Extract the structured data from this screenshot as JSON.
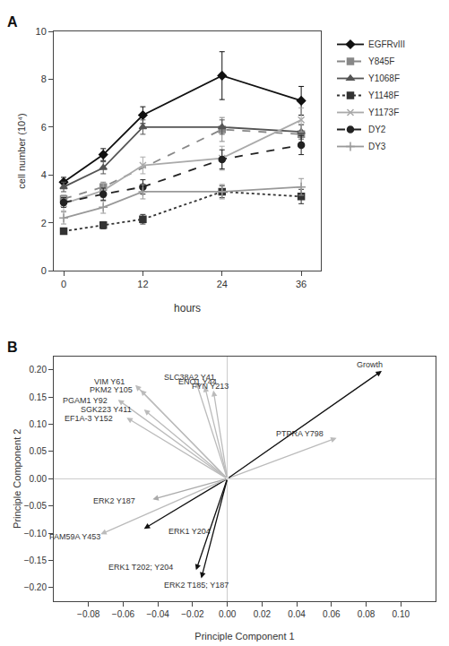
{
  "chart_data": [
    {
      "type": "line",
      "title": "A",
      "x": [
        0,
        6,
        12,
        24,
        36
      ],
      "xlabel": "hours",
      "ylabel": "cell number (10⁴)",
      "xlim": [
        -1.5,
        39
      ],
      "xticks": [
        0,
        12,
        24,
        36
      ],
      "ylim": [
        0,
        10
      ],
      "yticks": [
        0,
        2,
        4,
        6,
        8,
        10
      ],
      "grid": false,
      "legend": "right",
      "series": [
        {
          "name": "EGFRvIII",
          "color": "#111111",
          "line_style": "solid",
          "marker": "diamond",
          "values": [
            3.7,
            4.85,
            6.5,
            8.15,
            7.1
          ],
          "error": [
            0.2,
            0.25,
            0.35,
            1.0,
            0.6
          ]
        },
        {
          "name": "Y845F",
          "color": "#888888",
          "line_style": "dashed",
          "marker": "square",
          "values": [
            3.0,
            3.5,
            null,
            5.9,
            5.7
          ],
          "error": [
            0.15,
            0.2,
            null,
            0.5,
            0.4
          ]
        },
        {
          "name": "Y1068F",
          "color": "#555555",
          "line_style": "solid",
          "marker": "triangle-up",
          "values": [
            3.5,
            4.3,
            6.0,
            6.0,
            5.8
          ],
          "error": [
            0.2,
            0.25,
            0.3,
            0.3,
            0.3
          ]
        },
        {
          "name": "Y1148F",
          "color": "#333333",
          "line_style": "dotted",
          "marker": "square",
          "values": [
            1.65,
            1.9,
            2.15,
            3.3,
            3.1
          ],
          "error": [
            0.1,
            0.15,
            0.2,
            0.25,
            0.3
          ]
        },
        {
          "name": "Y1173F",
          "color": "#aaaaaa",
          "line_style": "solid",
          "marker": "x",
          "values": [
            2.8,
            3.35,
            4.4,
            4.7,
            6.3
          ],
          "error": [
            0.3,
            0.3,
            0.35,
            0.5,
            0.5
          ]
        },
        {
          "name": "DY2",
          "color": "#222222",
          "line_style": "dashed",
          "marker": "circle",
          "values": [
            2.85,
            3.2,
            3.5,
            4.65,
            5.25
          ],
          "error": [
            0.2,
            0.25,
            0.3,
            0.4,
            0.4
          ]
        },
        {
          "name": "DY3",
          "color": "#999999",
          "line_style": "solid",
          "marker": "plus",
          "values": [
            2.2,
            2.65,
            3.3,
            3.3,
            3.5
          ],
          "error": [
            0.25,
            0.25,
            0.3,
            0.3,
            0.35
          ]
        }
      ]
    },
    {
      "type": "biplot",
      "title": "B",
      "xlabel": "Principle Component 1",
      "ylabel": "Principle Component 2",
      "xlim": [
        -0.1,
        0.12
      ],
      "ylim": [
        -0.225,
        0.225
      ],
      "grid": false,
      "xticks": [
        {
          "value": -0.08,
          "label": "−0.08"
        },
        {
          "value": -0.06,
          "label": "−0.06"
        },
        {
          "value": -0.04,
          "label": "−0.04"
        },
        {
          "value": -0.02,
          "label": "−0.02"
        },
        {
          "value": 0.0,
          "label": "0.00"
        },
        0.02,
        0.04,
        0.06,
        0.08,
        {
          "value": 0.1,
          "label": "0.10"
        }
      ],
      "yticks": [
        {
          "value": -0.2,
          "label": "−0.20"
        },
        {
          "value": -0.15,
          "label": "−0.15"
        },
        {
          "value": -0.1,
          "label": "−0.10"
        },
        {
          "value": -0.05,
          "label": "−0.05"
        },
        {
          "value": 0.0,
          "label": "0.00"
        },
        0.05,
        {
          "value": 0.1,
          "label": "0.10"
        },
        0.15,
        {
          "value": 0.2,
          "label": "0.20"
        }
      ],
      "arrows": [
        {
          "x": -0.053,
          "y": 0.172,
          "label": "VIM Y61",
          "label_x": -0.068,
          "label_y": 0.178,
          "color": "#bbbbbb"
        },
        {
          "x": -0.05,
          "y": 0.163,
          "label": "PKM2 Y105",
          "label_x": -0.067,
          "label_y": 0.163,
          "color": "#bbbbbb"
        },
        {
          "x": -0.063,
          "y": 0.145,
          "label": "PGAM1 Y92",
          "label_x": -0.082,
          "label_y": 0.143,
          "color": "#bbbbbb"
        },
        {
          "x": -0.048,
          "y": 0.127,
          "label": "SGK223 Y411",
          "label_x": -0.07,
          "label_y": 0.127,
          "color": "#bbbbbb"
        },
        {
          "x": -0.058,
          "y": 0.112,
          "label": "EF1A-3 Y152",
          "label_x": -0.08,
          "label_y": 0.11,
          "color": "#bbbbbb"
        },
        {
          "x": -0.018,
          "y": 0.178,
          "label": "SLC38A2 Y41",
          "label_x": -0.022,
          "label_y": 0.186,
          "color": "#bbbbbb"
        },
        {
          "x": -0.013,
          "y": 0.17,
          "label": "ENO1 Y44",
          "label_x": -0.017,
          "label_y": 0.178,
          "color": "#bbbbbb"
        },
        {
          "x": -0.008,
          "y": 0.162,
          "label": "FYN Y213",
          "label_x": -0.01,
          "label_y": 0.17,
          "color": "#bbbbbb"
        },
        {
          "x": 0.063,
          "y": 0.075,
          "label": "PTPRA Y798",
          "label_x": 0.042,
          "label_y": 0.082,
          "color": "#bbbbbb"
        },
        {
          "x": 0.089,
          "y": 0.198,
          "label": "Growth",
          "label_x": 0.082,
          "label_y": 0.21,
          "color": "#111111"
        },
        {
          "x": -0.043,
          "y": -0.038,
          "label": "ERK2 Y187",
          "label_x": -0.065,
          "label_y": -0.04,
          "color": "#aaaaaa"
        },
        {
          "x": -0.048,
          "y": -0.092,
          "label": "ERK1 Y204",
          "label_x": -0.022,
          "label_y": -0.096,
          "color": "#111111"
        },
        {
          "x": -0.073,
          "y": -0.102,
          "label": "FAM59A Y453",
          "label_x": -0.088,
          "label_y": -0.106,
          "color": "#bbbbbb"
        },
        {
          "x": -0.018,
          "y": -0.168,
          "label": "ERK1 T202; Y204",
          "label_x": -0.05,
          "label_y": -0.162,
          "color": "#111111"
        },
        {
          "x": -0.015,
          "y": -0.183,
          "label": "ERK2 T185; Y187",
          "label_x": -0.018,
          "label_y": -0.195,
          "color": "#111111"
        }
      ]
    }
  ]
}
